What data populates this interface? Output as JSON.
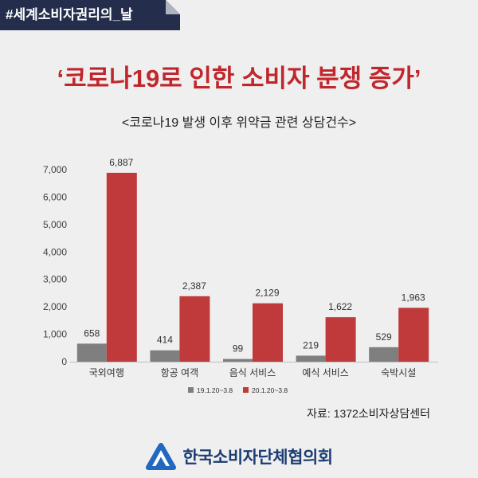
{
  "banner": {
    "text": "#세계소비자권리의_날"
  },
  "header": {
    "title": "‘코로나19로 인한 소비자 분쟁 증가’"
  },
  "chart_data": {
    "type": "bar",
    "title": "<코로나19 발생 이후 위약금 관련 상담건수>",
    "categories": [
      "국외여행",
      "항공 여객",
      "음식 서비스",
      "예식 서비스",
      "숙박시설"
    ],
    "series": [
      {
        "name": "19.1.20~3.8",
        "values": [
          658,
          414,
          99,
          219,
          529
        ],
        "data_labels": [
          "658",
          "414",
          "99",
          "219",
          "529"
        ],
        "color": "#7f7f7f"
      },
      {
        "name": "20.1.20~3.8",
        "values": [
          6887,
          2387,
          2129,
          1622,
          1963
        ],
        "data_labels": [
          "6,887",
          "2,387",
          "2,129",
          "1,622",
          "1,963"
        ],
        "color": "#c0393b"
      }
    ],
    "ylim": [
      0,
      7000
    ],
    "yticks": [
      {
        "value": 0,
        "label": "0"
      },
      {
        "value": 1000,
        "label": "1,000"
      },
      {
        "value": 2000,
        "label": "2,000"
      },
      {
        "value": 3000,
        "label": "3,000"
      },
      {
        "value": 4000,
        "label": "4,000"
      },
      {
        "value": 5000,
        "label": "5,000"
      },
      {
        "value": 6000,
        "label": "6,000"
      },
      {
        "value": 7000,
        "label": "7,000"
      }
    ],
    "grid": false,
    "legend": "bottom-center"
  },
  "source": "자료: 1372소비자상담센터",
  "logo": {
    "text": "한국소비자단체협의회",
    "icon": "mountain-logo-icon"
  },
  "colors": {
    "background": "#efefef",
    "banner": "#242e4c",
    "title": "#c0272d",
    "logo_text": "#1c3d74",
    "logo_icon": "#2268c0"
  }
}
